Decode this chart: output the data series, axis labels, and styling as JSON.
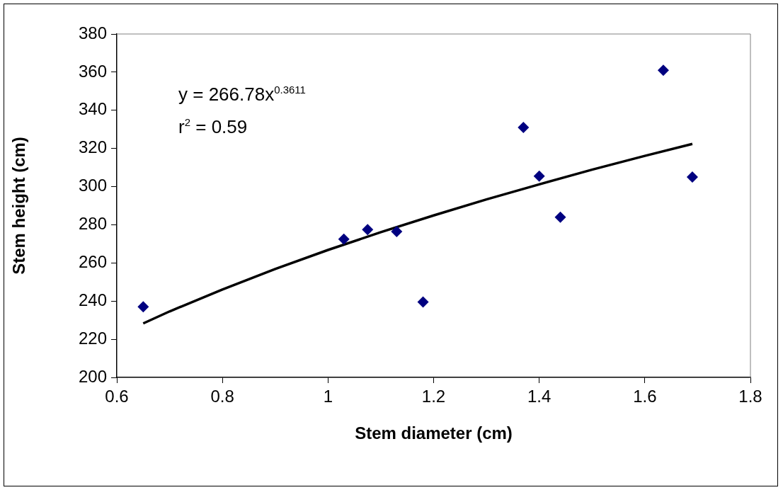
{
  "chart_data": {
    "type": "scatter",
    "xlabel": "Stem diameter (cm)",
    "ylabel": "Stem height (cm)",
    "xlim": [
      0.6,
      1.8
    ],
    "xticks": [
      0.6,
      0.8,
      1,
      1.2,
      1.4,
      1.6,
      1.8
    ],
    "ylim": [
      200,
      380
    ],
    "yticks": [
      200,
      220,
      240,
      260,
      280,
      300,
      320,
      340,
      360,
      380
    ],
    "grid": false,
    "legend": false,
    "marker": "diamond",
    "annotations": [
      "y = 266.78x$^{0.3611}$",
      "r$^{2}$ = 0.59"
    ],
    "series": [
      {
        "color": "#000080",
        "x": [
          0.65,
          1.03,
          1.075,
          1.13,
          1.18,
          1.37,
          1.4,
          1.44,
          1.635,
          1.69
        ],
        "values": [
          237,
          272.5,
          277.5,
          276.5,
          239.5,
          331,
          305.5,
          284,
          361,
          305
        ]
      },
      {
        "type": "line",
        "color": "#000000",
        "marker": "none",
        "line_style": "solid",
        "x": [
          0.65,
          0.7,
          0.8,
          0.9,
          1,
          1.1,
          1.2,
          1.3,
          1.4,
          1.5,
          1.6,
          1.69
        ],
        "values": [
          228.3,
          234.6,
          246.1,
          256.8,
          266.8,
          276.1,
          284.9,
          293.3,
          301.2,
          308.9,
          316.1,
          322.4
        ]
      }
    ]
  }
}
